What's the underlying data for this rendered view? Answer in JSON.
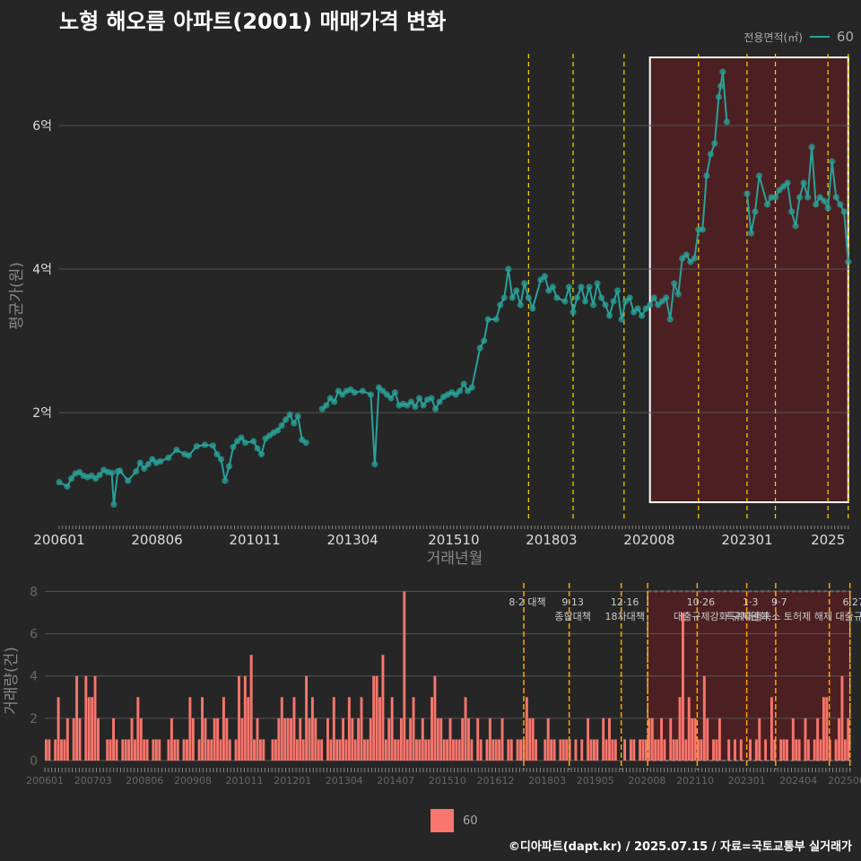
{
  "title": "노형 해오름 아파트(2001) 매매가격 변화",
  "caption": "©디아파트(dapt.kr) / 2025.07.15 / 자료=국토교통부 실거래가",
  "legend_top": {
    "title": "전용면적(㎡)",
    "label": "60"
  },
  "legend_bottom": {
    "label": "60"
  },
  "colors": {
    "background": "#262626",
    "price_line": "#2aa198",
    "volume_bar": "#f8766d",
    "policy_line": "#ffd700",
    "highlight_fill": "#5a1f22",
    "grid": "#555555"
  },
  "chart_data": [
    {
      "type": "line",
      "ylabel": "평균가(원)",
      "xlabel": "거래년월",
      "x_ticks": [
        "200601",
        "200806",
        "201011",
        "201304",
        "201510",
        "201803",
        "202008",
        "202301",
        "2025"
      ],
      "y_ticks": [
        "2억",
        "4억",
        "6억"
      ],
      "ylim": [
        0.5,
        7.0
      ],
      "y_unit": "억",
      "xlim": [
        2006.0,
        2025.55
      ],
      "highlight_range": [
        2020.6,
        2025.5
      ],
      "policy_lines": [
        2017.6,
        2018.7,
        2019.96,
        2021.8,
        2023.0,
        2023.7,
        2025.0,
        2025.5
      ],
      "series": [
        {
          "name": "60",
          "points": [
            [
              2006.0,
              1.03
            ],
            [
              2006.2,
              0.97
            ],
            [
              2006.3,
              1.08
            ],
            [
              2006.4,
              1.15
            ],
            [
              2006.5,
              1.17
            ],
            [
              2006.6,
              1.12
            ],
            [
              2006.7,
              1.1
            ],
            [
              2006.8,
              1.12
            ],
            [
              2006.9,
              1.08
            ],
            [
              2007.0,
              1.13
            ],
            [
              2007.1,
              1.2
            ],
            [
              2007.2,
              1.17
            ],
            [
              2007.3,
              1.16
            ],
            [
              2007.35,
              0.72
            ],
            [
              2007.45,
              1.18
            ],
            [
              2007.5,
              1.19
            ],
            [
              2007.7,
              1.05
            ],
            [
              2007.9,
              1.18
            ],
            [
              2008.0,
              1.3
            ],
            [
              2008.1,
              1.22
            ],
            [
              2008.2,
              1.28
            ],
            [
              2008.3,
              1.35
            ],
            [
              2008.4,
              1.3
            ],
            [
              2008.5,
              1.32
            ],
            [
              2008.7,
              1.37
            ],
            [
              2008.9,
              1.48
            ],
            [
              2009.1,
              1.42
            ],
            [
              2009.2,
              1.4
            ],
            [
              2009.4,
              1.53
            ],
            [
              2009.6,
              1.55
            ],
            [
              2009.8,
              1.54
            ],
            [
              2009.9,
              1.42
            ],
            [
              2010.0,
              1.35
            ],
            [
              2010.1,
              1.05
            ],
            [
              2010.2,
              1.25
            ],
            [
              2010.3,
              1.52
            ],
            [
              2010.4,
              1.6
            ],
            [
              2010.5,
              1.65
            ],
            [
              2010.6,
              1.58
            ],
            [
              2010.8,
              1.6
            ],
            [
              2010.9,
              1.5
            ],
            [
              2011.0,
              1.42
            ],
            [
              2011.1,
              1.64
            ],
            [
              2011.2,
              1.68
            ],
            [
              2011.3,
              1.72
            ],
            [
              2011.4,
              1.75
            ],
            [
              2011.5,
              1.82
            ],
            [
              2011.6,
              1.9
            ],
            [
              2011.7,
              1.97
            ],
            [
              2011.8,
              1.85
            ],
            [
              2011.9,
              1.95
            ],
            [
              2012.0,
              1.62
            ],
            [
              2012.1,
              1.58
            ],
            [
              2012.5,
              2.05
            ],
            [
              2012.6,
              2.1
            ],
            [
              2012.7,
              2.2
            ],
            [
              2012.8,
              2.15
            ],
            [
              2012.9,
              2.3
            ],
            [
              2013.0,
              2.25
            ],
            [
              2013.1,
              2.3
            ],
            [
              2013.2,
              2.32
            ],
            [
              2013.3,
              2.28
            ],
            [
              2013.5,
              2.3
            ],
            [
              2013.7,
              2.25
            ],
            [
              2013.8,
              1.28
            ],
            [
              2013.9,
              2.35
            ],
            [
              2014.0,
              2.3
            ],
            [
              2014.1,
              2.25
            ],
            [
              2014.2,
              2.2
            ],
            [
              2014.3,
              2.28
            ],
            [
              2014.4,
              2.1
            ],
            [
              2014.5,
              2.12
            ],
            [
              2014.6,
              2.1
            ],
            [
              2014.7,
              2.15
            ],
            [
              2014.8,
              2.08
            ],
            [
              2014.9,
              2.2
            ],
            [
              2015.0,
              2.1
            ],
            [
              2015.1,
              2.18
            ],
            [
              2015.2,
              2.2
            ],
            [
              2015.3,
              2.05
            ],
            [
              2015.4,
              2.15
            ],
            [
              2015.5,
              2.22
            ],
            [
              2015.6,
              2.25
            ],
            [
              2015.7,
              2.28
            ],
            [
              2015.8,
              2.25
            ],
            [
              2015.9,
              2.3
            ],
            [
              2016.0,
              2.4
            ],
            [
              2016.1,
              2.3
            ],
            [
              2016.2,
              2.35
            ],
            [
              2016.4,
              2.9
            ],
            [
              2016.5,
              3.0
            ],
            [
              2016.6,
              3.3
            ],
            [
              2016.8,
              3.3
            ],
            [
              2016.9,
              3.5
            ],
            [
              2017.0,
              3.6
            ],
            [
              2017.1,
              4.0
            ],
            [
              2017.2,
              3.6
            ],
            [
              2017.3,
              3.7
            ],
            [
              2017.4,
              3.5
            ],
            [
              2017.5,
              3.8
            ],
            [
              2017.6,
              3.6
            ],
            [
              2017.7,
              3.45
            ],
            [
              2017.9,
              3.85
            ],
            [
              2018.0,
              3.9
            ],
            [
              2018.1,
              3.7
            ],
            [
              2018.2,
              3.75
            ],
            [
              2018.3,
              3.6
            ],
            [
              2018.5,
              3.55
            ],
            [
              2018.6,
              3.75
            ],
            [
              2018.7,
              3.4
            ],
            [
              2018.8,
              3.6
            ],
            [
              2018.9,
              3.75
            ],
            [
              2019.0,
              3.55
            ],
            [
              2019.1,
              3.75
            ],
            [
              2019.2,
              3.5
            ],
            [
              2019.3,
              3.8
            ],
            [
              2019.4,
              3.6
            ],
            [
              2019.5,
              3.5
            ],
            [
              2019.6,
              3.35
            ],
            [
              2019.7,
              3.55
            ],
            [
              2019.8,
              3.7
            ],
            [
              2019.9,
              3.3
            ],
            [
              2020.0,
              3.55
            ],
            [
              2020.1,
              3.6
            ],
            [
              2020.2,
              3.4
            ],
            [
              2020.3,
              3.45
            ],
            [
              2020.4,
              3.35
            ],
            [
              2020.5,
              3.45
            ],
            [
              2020.6,
              3.5
            ],
            [
              2020.7,
              3.6
            ],
            [
              2020.8,
              3.5
            ],
            [
              2020.9,
              3.55
            ],
            [
              2021.0,
              3.6
            ],
            [
              2021.1,
              3.3
            ],
            [
              2021.2,
              3.8
            ],
            [
              2021.3,
              3.65
            ],
            [
              2021.4,
              4.15
            ],
            [
              2021.5,
              4.2
            ],
            [
              2021.6,
              4.1
            ],
            [
              2021.7,
              4.15
            ],
            [
              2021.8,
              4.55
            ],
            [
              2021.9,
              4.55
            ],
            [
              2022.0,
              5.3
            ],
            [
              2022.1,
              5.6
            ],
            [
              2022.2,
              5.75
            ],
            [
              2022.3,
              6.4
            ],
            [
              2022.35,
              6.55
            ],
            [
              2022.4,
              6.75
            ],
            [
              2022.5,
              6.05
            ],
            [
              2023.0,
              5.05
            ],
            [
              2023.1,
              4.5
            ],
            [
              2023.2,
              4.8
            ],
            [
              2023.3,
              5.3
            ],
            [
              2023.5,
              4.9
            ],
            [
              2023.6,
              5.0
            ],
            [
              2023.7,
              5.0
            ],
            [
              2023.8,
              5.1
            ],
            [
              2023.9,
              5.15
            ],
            [
              2024.0,
              5.2
            ],
            [
              2024.1,
              4.8
            ],
            [
              2024.2,
              4.6
            ],
            [
              2024.3,
              5.0
            ],
            [
              2024.4,
              5.2
            ],
            [
              2024.5,
              5.0
            ],
            [
              2024.6,
              5.7
            ],
            [
              2024.7,
              4.9
            ],
            [
              2024.8,
              5.0
            ],
            [
              2024.9,
              4.95
            ],
            [
              2025.0,
              4.85
            ],
            [
              2025.1,
              5.5
            ],
            [
              2025.2,
              5.0
            ],
            [
              2025.3,
              4.9
            ],
            [
              2025.4,
              4.8
            ],
            [
              2025.5,
              4.1
            ]
          ]
        }
      ]
    },
    {
      "type": "bar",
      "ylabel": "거래량(건)",
      "x_ticks": [
        "200601",
        "200703",
        "200806",
        "200908",
        "201011",
        "201201",
        "201304",
        "201407",
        "201510",
        "201612",
        "201803",
        "201905",
        "202008",
        "202110",
        "202301",
        "202404",
        "202506"
      ],
      "y_ticks": [
        "0",
        "2",
        "4",
        "6",
        "8"
      ],
      "ylim": [
        0,
        8.4
      ],
      "xlim": [
        2006.0,
        2025.55
      ],
      "highlight_range": [
        2020.6,
        2025.5
      ],
      "policy_lines": [
        2017.6,
        2018.7,
        2019.96,
        2020.6,
        2021.8,
        2023.0,
        2023.7,
        2025.0,
        2025.5
      ],
      "annotations": [
        {
          "x": 2017.6,
          "lines": [
            "8·2 대책"
          ]
        },
        {
          "x": 2018.7,
          "lines": [
            "9·13",
            "종합대책"
          ]
        },
        {
          "x": 2019.96,
          "lines": [
            "12·16",
            "18차대책"
          ]
        },
        {
          "x": 2021.8,
          "lines": [
            "10·26",
            "대출규제강화"
          ]
        },
        {
          "x": 2023.0,
          "lines": [
            "1·3",
            "규제완화"
          ]
        },
        {
          "x": 2023.7,
          "lines": [
            "9·7",
            "특례대출축소 토허제 해제"
          ]
        },
        {
          "x": 2025.5,
          "lines": [
            "6·27",
            "대출규제"
          ]
        }
      ],
      "series": [
        {
          "name": "60",
          "values": [
            1,
            1,
            0,
            1,
            3,
            1,
            1,
            2,
            0,
            2,
            4,
            2,
            0,
            4,
            3,
            3,
            4,
            2,
            0,
            0,
            1,
            1,
            2,
            1,
            0,
            1,
            1,
            1,
            2,
            1,
            3,
            2,
            1,
            1,
            0,
            1,
            1,
            1,
            0,
            0,
            1,
            2,
            1,
            1,
            0,
            1,
            1,
            3,
            2,
            0,
            1,
            3,
            2,
            1,
            1,
            2,
            2,
            1,
            3,
            2,
            1,
            0,
            1,
            4,
            2,
            4,
            3,
            5,
            1,
            2,
            1,
            1,
            0,
            0,
            1,
            1,
            2,
            3,
            2,
            2,
            2,
            3,
            1,
            2,
            1,
            4,
            2,
            3,
            2,
            1,
            1,
            0,
            2,
            1,
            3,
            1,
            1,
            2,
            1,
            3,
            2,
            1,
            2,
            3,
            1,
            1,
            2,
            4,
            4,
            3,
            5,
            1,
            2,
            3,
            1,
            1,
            2,
            8,
            1,
            2,
            3,
            1,
            1,
            2,
            1,
            1,
            3,
            4,
            2,
            2,
            1,
            1,
            2,
            1,
            1,
            1,
            2,
            3,
            2,
            1,
            0,
            2,
            1,
            0,
            1,
            2,
            1,
            1,
            1,
            2,
            0,
            1,
            1,
            0,
            1,
            1,
            1,
            3,
            2,
            2,
            1,
            0,
            0,
            1,
            2,
            1,
            1,
            0,
            1,
            1,
            1,
            1,
            0,
            1,
            0,
            1,
            0,
            2,
            1,
            1,
            1,
            0,
            2,
            1,
            2,
            1,
            1,
            0,
            0,
            1,
            0,
            1,
            1,
            0,
            1,
            1,
            1,
            2,
            2,
            1,
            1,
            2,
            1,
            0,
            2,
            1,
            1,
            3,
            7,
            1,
            3,
            2,
            2,
            1,
            1,
            4,
            2,
            0,
            1,
            1,
            2,
            0,
            0,
            1,
            0,
            1,
            0,
            1,
            0,
            0,
            1,
            0,
            1,
            2,
            0,
            1,
            0,
            3,
            1,
            0,
            1,
            1,
            1,
            0,
            2,
            1,
            1,
            0,
            2,
            1,
            0,
            1,
            2,
            1,
            3,
            3,
            1,
            0,
            1,
            2,
            4,
            1,
            2
          ]
        }
      ]
    }
  ]
}
